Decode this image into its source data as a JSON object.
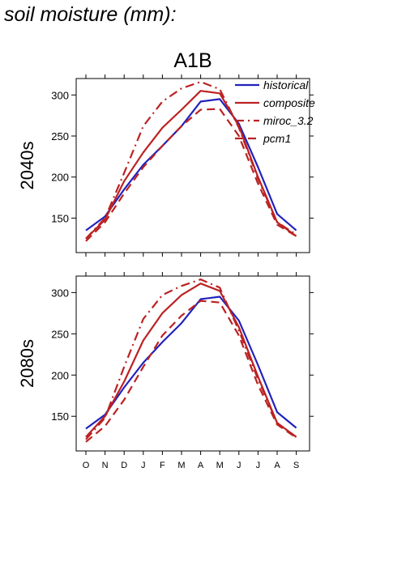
{
  "page_title": "soil moisture (mm):",
  "colors": {
    "historical": "#2222bb",
    "future": "#bb2222"
  },
  "chart_data": [
    {
      "type": "line",
      "title": "A1B",
      "ylabel": "2040s",
      "categories": [
        "O",
        "N",
        "D",
        "J",
        "F",
        "M",
        "A",
        "M",
        "J",
        "J",
        "A",
        "S"
      ],
      "ylim": [
        108,
        320
      ],
      "yticks": [
        150,
        200,
        250,
        300
      ],
      "legend": "top-right",
      "series": [
        {
          "name": "historical",
          "color": "#2222bb",
          "dash": "solid",
          "values": [
            135,
            152,
            185,
            215,
            238,
            262,
            292,
            295,
            265,
            212,
            155,
            135
          ]
        },
        {
          "name": "composite",
          "color": "#bb2222",
          "dash": "solid",
          "values": [
            125,
            148,
            195,
            230,
            260,
            282,
            305,
            302,
            262,
            200,
            145,
            128
          ]
        },
        {
          "name": "miroc_3.2",
          "color": "#bb2222",
          "dash": "dashdot",
          "values": [
            125,
            150,
            205,
            262,
            292,
            308,
            316,
            307,
            260,
            198,
            145,
            130
          ]
        },
        {
          "name": "pcm1",
          "color": "#bb2222",
          "dash": "dash",
          "values": [
            122,
            145,
            180,
            212,
            238,
            262,
            282,
            283,
            250,
            192,
            142,
            128
          ]
        }
      ]
    },
    {
      "type": "line",
      "title": "",
      "ylabel": "2080s",
      "categories": [
        "O",
        "N",
        "D",
        "J",
        "F",
        "M",
        "A",
        "M",
        "J",
        "J",
        "A",
        "S"
      ],
      "ylim": [
        108,
        320
      ],
      "yticks": [
        150,
        200,
        250,
        300
      ],
      "series": [
        {
          "name": "historical",
          "color": "#2222bb",
          "dash": "solid",
          "values": [
            135,
            152,
            185,
            215,
            240,
            263,
            292,
            295,
            266,
            212,
            155,
            136
          ]
        },
        {
          "name": "composite",
          "color": "#bb2222",
          "dash": "solid",
          "values": [
            125,
            150,
            192,
            242,
            275,
            297,
            311,
            302,
            258,
            198,
            142,
            125
          ]
        },
        {
          "name": "miroc_3.2",
          "color": "#bb2222",
          "dash": "dashdot",
          "values": [
            122,
            148,
            210,
            268,
            297,
            308,
            316,
            306,
            254,
            195,
            142,
            125
          ]
        },
        {
          "name": "pcm1",
          "color": "#bb2222",
          "dash": "dash",
          "values": [
            119,
            138,
            170,
            210,
            248,
            272,
            290,
            288,
            248,
            188,
            140,
            124
          ]
        }
      ]
    }
  ]
}
